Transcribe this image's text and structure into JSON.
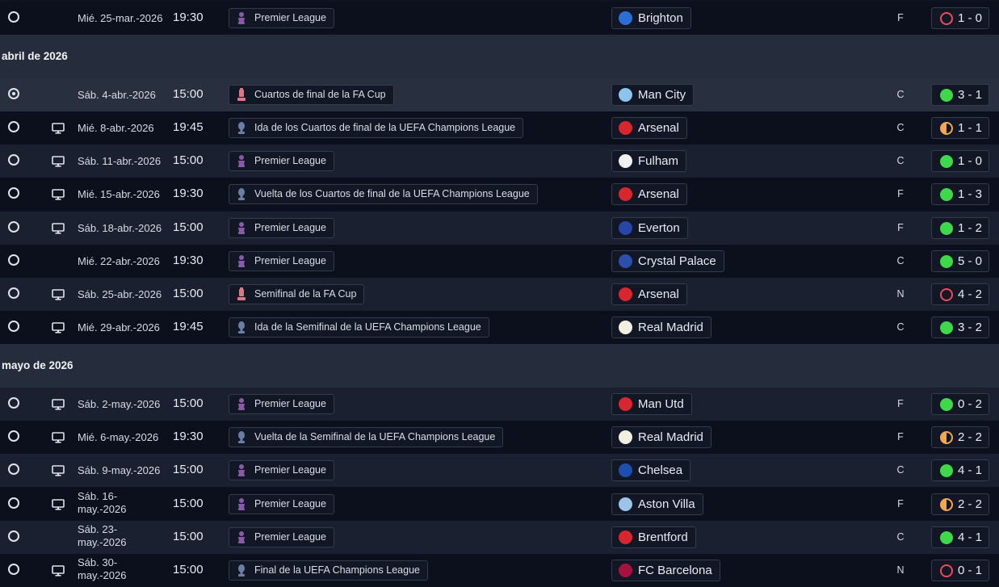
{
  "headers": [
    {
      "label": "abril de 2026"
    },
    {
      "label": "mayo de 2026"
    }
  ],
  "matches": [
    {
      "selected": false,
      "tv": false,
      "date": "Mié. 25-mar.-2026",
      "time": "19:30",
      "competition": "Premier League",
      "comp_icon": "premier-league-trophy",
      "team": "Brighton",
      "crest_color": "#2a6fd6",
      "venue": "F",
      "result": "loss",
      "score": "1 - 0"
    },
    {
      "selected": true,
      "tv": false,
      "date": "Sáb. 4-abr.-2026",
      "time": "15:00",
      "competition": "Cuartos de final de la FA Cup",
      "comp_icon": "fa-cup-trophy",
      "team": "Man City",
      "crest_color": "#8cc4ee",
      "venue": "C",
      "result": "win",
      "score": "3 - 1"
    },
    {
      "selected": false,
      "tv": true,
      "date": "Mié. 8-abr.-2026",
      "time": "19:45",
      "competition": "Ida de los Cuartos de final de la UEFA Champions League",
      "comp_icon": "champions-league-trophy",
      "team": "Arsenal",
      "crest_color": "#d8262e",
      "venue": "C",
      "result": "draw",
      "score": "1 - 1"
    },
    {
      "selected": false,
      "tv": true,
      "date": "Sáb. 11-abr.-2026",
      "time": "15:00",
      "competition": "Premier League",
      "comp_icon": "premier-league-trophy",
      "team": "Fulham",
      "crest_color": "#f1f1f1",
      "venue": "C",
      "result": "win",
      "score": "1 - 0"
    },
    {
      "selected": false,
      "tv": true,
      "date": "Mié. 15-abr.-2026",
      "time": "19:30",
      "competition": "Vuelta de los Cuartos de final de la UEFA Champions League",
      "comp_icon": "champions-league-trophy",
      "team": "Arsenal",
      "crest_color": "#d8262e",
      "venue": "F",
      "result": "win",
      "score": "1 - 3"
    },
    {
      "selected": false,
      "tv": true,
      "date": "Sáb. 18-abr.-2026",
      "time": "15:00",
      "competition": "Premier League",
      "comp_icon": "premier-league-trophy",
      "team": "Everton",
      "crest_color": "#2746a8",
      "venue": "F",
      "result": "win",
      "score": "1 - 2"
    },
    {
      "selected": false,
      "tv": false,
      "date": "Mié. 22-abr.-2026",
      "time": "19:30",
      "competition": "Premier League",
      "comp_icon": "premier-league-trophy",
      "team": "Crystal Palace",
      "crest_color": "#2c4fae",
      "venue": "C",
      "result": "win",
      "score": "5 - 0"
    },
    {
      "selected": false,
      "tv": true,
      "date": "Sáb. 25-abr.-2026",
      "time": "15:00",
      "competition": "Semifinal de la FA Cup",
      "comp_icon": "fa-cup-trophy",
      "team": "Arsenal",
      "crest_color": "#d8262e",
      "venue": "N",
      "result": "loss",
      "score": "4 - 2"
    },
    {
      "selected": false,
      "tv": true,
      "date": "Mié. 29-abr.-2026",
      "time": "19:45",
      "competition": "Ida de la Semifinal de la UEFA Champions League",
      "comp_icon": "champions-league-trophy",
      "team": "Real Madrid",
      "crest_color": "#f2efe2",
      "venue": "C",
      "result": "win",
      "score": "3 - 2"
    },
    {
      "selected": false,
      "tv": true,
      "date": "Sáb. 2-may.-2026",
      "time": "15:00",
      "competition": "Premier League",
      "comp_icon": "premier-league-trophy",
      "team": "Man Utd",
      "crest_color": "#d8262e",
      "venue": "F",
      "result": "win",
      "score": "0 - 2"
    },
    {
      "selected": false,
      "tv": true,
      "date": "Mié. 6-may.-2026",
      "time": "19:30",
      "competition": "Vuelta de la Semifinal de la UEFA Champions League",
      "comp_icon": "champions-league-trophy",
      "team": "Real Madrid",
      "crest_color": "#f2efe2",
      "venue": "F",
      "result": "draw",
      "score": "2 - 2"
    },
    {
      "selected": false,
      "tv": true,
      "date": "Sáb. 9-may.-2026",
      "time": "15:00",
      "competition": "Premier League",
      "comp_icon": "premier-league-trophy",
      "team": "Chelsea",
      "crest_color": "#1f4fae",
      "venue": "C",
      "result": "win",
      "score": "4 - 1"
    },
    {
      "selected": false,
      "tv": true,
      "date": "Sáb. 16-may.-2026",
      "time": "15:00",
      "competition": "Premier League",
      "comp_icon": "premier-league-trophy",
      "team": "Aston Villa",
      "crest_color": "#9bc4e8",
      "venue": "F",
      "result": "draw",
      "score": "2 - 2"
    },
    {
      "selected": false,
      "tv": false,
      "date": "Sáb. 23-may.-2026",
      "time": "15:00",
      "competition": "Premier League",
      "comp_icon": "premier-league-trophy",
      "team": "Brentford",
      "crest_color": "#d8262e",
      "venue": "C",
      "result": "win",
      "score": "4 - 1"
    },
    {
      "selected": false,
      "tv": true,
      "date": "Sáb. 30-may.-2026",
      "time": "15:00",
      "competition": "Final de la UEFA Champions League",
      "comp_icon": "champions-league-trophy",
      "team": "FC Barcelona",
      "crest_color": "#a5123d",
      "venue": "N",
      "result": "loss",
      "score": "0 - 1"
    }
  ],
  "colors": {
    "win": "#3fd84a",
    "loss": "#f0495a",
    "draw": "#f6a553",
    "premier_league": "#8a5aa8",
    "fa_cup": "#d67a86",
    "champions_league": "#6a7fa6"
  }
}
